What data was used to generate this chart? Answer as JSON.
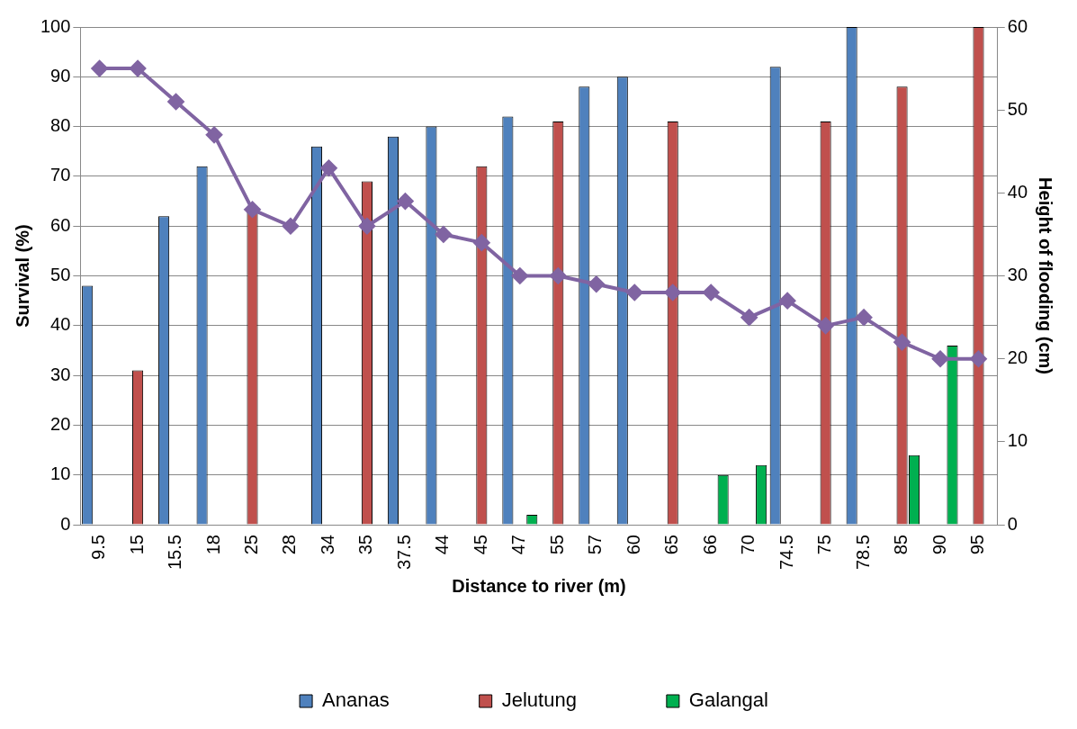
{
  "chart_data": {
    "type": "bar",
    "xlabel": "Distance to river (m)",
    "ylabel": "Survival (%)",
    "y2label": "Height of flooding (cm)",
    "categories": [
      "9.5",
      "15",
      "15.5",
      "18",
      "25",
      "28",
      "34",
      "35",
      "37.5",
      "44",
      "45",
      "47",
      "55",
      "57",
      "60",
      "65",
      "66",
      "70",
      "74.5",
      "75",
      "78.5",
      "85",
      "90",
      "95"
    ],
    "series": [
      {
        "name": "Ananas",
        "color": "#4f81bd",
        "values": [
          48,
          null,
          62,
          72,
          null,
          null,
          76,
          null,
          78,
          80,
          null,
          82,
          null,
          88,
          90,
          null,
          null,
          null,
          92,
          null,
          100,
          null,
          null,
          null
        ]
      },
      {
        "name": "Jelutung",
        "color": "#c0504d",
        "values": [
          null,
          31,
          null,
          null,
          63,
          null,
          null,
          69,
          null,
          null,
          72,
          null,
          81,
          null,
          null,
          81,
          null,
          null,
          null,
          81,
          null,
          88,
          null,
          100
        ]
      },
      {
        "name": "Galangal",
        "color": "#00b050",
        "values": [
          null,
          null,
          null,
          null,
          null,
          null,
          null,
          null,
          null,
          null,
          null,
          2,
          null,
          null,
          null,
          null,
          10,
          12,
          null,
          null,
          null,
          14,
          36,
          null
        ]
      },
      {
        "type": "line",
        "axis": "y2",
        "color": "#8064a2",
        "values": [
          55,
          55,
          51,
          47,
          38,
          36,
          43,
          36,
          39,
          35,
          34,
          30,
          30,
          29,
          28,
          28,
          28,
          25,
          27,
          24,
          25,
          22,
          20,
          20
        ]
      }
    ],
    "ylim": [
      0,
      100
    ],
    "yticks": [
      0,
      10,
      20,
      30,
      40,
      50,
      60,
      70,
      80,
      90,
      100
    ],
    "y2lim": [
      0,
      60
    ],
    "y2ticks": [
      0,
      10,
      20,
      30,
      40,
      50,
      60
    ],
    "grid": "y",
    "legend": "bottom",
    "marker": "diamond"
  }
}
